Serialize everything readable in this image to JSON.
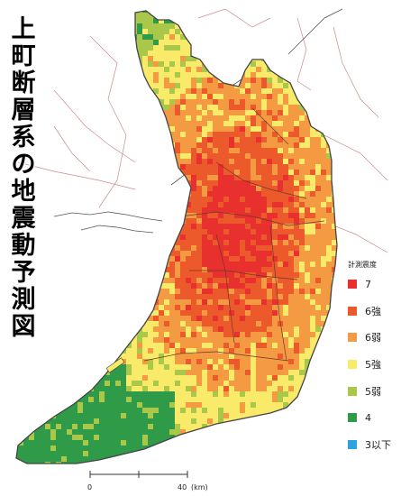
{
  "title_chars": [
    "上",
    "町",
    "断",
    "層",
    "系",
    "の",
    "地",
    "震",
    "動",
    "予",
    "測",
    "図"
  ],
  "legend": {
    "title": "計測震度",
    "items": [
      {
        "label": "7",
        "color": "#e8302e"
      },
      {
        "label": "6強",
        "color": "#ec5a2c"
      },
      {
        "label": "6弱",
        "color": "#f39a42"
      },
      {
        "label": "5強",
        "color": "#f9ea6a"
      },
      {
        "label": "5弱",
        "color": "#a9c84a"
      },
      {
        "label": "4",
        "color": "#2f9a48"
      },
      {
        "label": "3以下",
        "color": "#2ca4e2"
      }
    ]
  },
  "scale": {
    "start": "0",
    "end": "40",
    "unit": "(km)"
  }
}
